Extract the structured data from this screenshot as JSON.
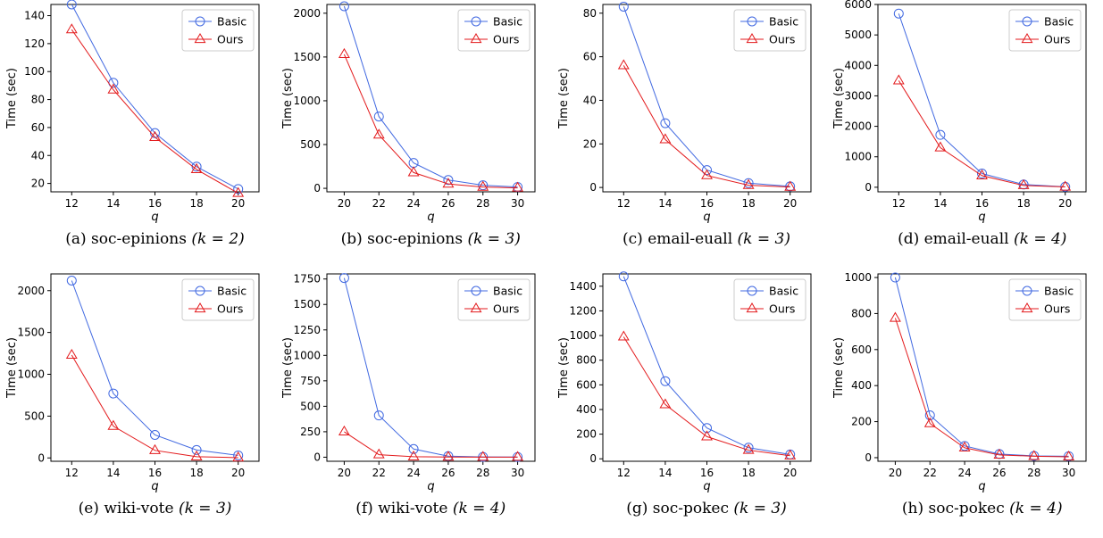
{
  "theme": {
    "basic_color": "#4169e1",
    "ours_color": "#e31a1c"
  },
  "chart_data": [
    {
      "type": "line",
      "ylabel": "Time (sec)",
      "xlabel": "q",
      "caption": {
        "prefix": "(a) soc-epinions ",
        "math": "(k = 2)"
      },
      "x": [
        12,
        14,
        16,
        18,
        20
      ],
      "xlim": [
        11,
        21
      ],
      "xticks": [
        12,
        14,
        16,
        18,
        20
      ],
      "ylim": [
        14,
        148
      ],
      "yticks": [
        20,
        40,
        60,
        80,
        100,
        120,
        140
      ],
      "ytick_labels": [
        "20",
        "40",
        "60",
        "80",
        "100",
        "120",
        "140"
      ],
      "legend": "top-right",
      "series": [
        {
          "name": "Basic",
          "marker": "circle",
          "values": [
            148,
            92,
            56,
            32,
            16
          ]
        },
        {
          "name": "Ours",
          "marker": "triangle",
          "values": [
            130,
            87,
            53,
            30,
            13
          ]
        }
      ]
    },
    {
      "type": "line",
      "ylabel": "Time (sec)",
      "xlabel": "q",
      "caption": {
        "prefix": "(b) soc-epinions ",
        "math": "(k = 3)"
      },
      "x": [
        20,
        22,
        24,
        26,
        28,
        30
      ],
      "xlim": [
        19,
        31
      ],
      "xticks": [
        20,
        22,
        24,
        26,
        28,
        30
      ],
      "ylim": [
        -40,
        2100
      ],
      "yticks": [
        0,
        500,
        1000,
        1500,
        2000
      ],
      "ytick_labels": [
        "0",
        "500",
        "1000",
        "1500",
        "2000"
      ],
      "legend": "top-right",
      "series": [
        {
          "name": "Basic",
          "marker": "circle",
          "values": [
            2080,
            820,
            290,
            95,
            35,
            15
          ]
        },
        {
          "name": "Ours",
          "marker": "triangle",
          "values": [
            1530,
            610,
            180,
            50,
            15,
            5
          ]
        }
      ]
    },
    {
      "type": "line",
      "ylabel": "Time (sec)",
      "xlabel": "q",
      "caption": {
        "prefix": "(c) email-euall ",
        "math": "(k = 3)"
      },
      "x": [
        12,
        14,
        16,
        18,
        20
      ],
      "xlim": [
        11,
        21
      ],
      "xticks": [
        12,
        14,
        16,
        18,
        20
      ],
      "ylim": [
        -2,
        84
      ],
      "yticks": [
        0,
        20,
        40,
        60,
        80
      ],
      "ytick_labels": [
        "0",
        "20",
        "40",
        "60",
        "80"
      ],
      "legend": "top-right",
      "series": [
        {
          "name": "Basic",
          "marker": "circle",
          "values": [
            83,
            29.5,
            8,
            2,
            0.5
          ]
        },
        {
          "name": "Ours",
          "marker": "triangle",
          "values": [
            56,
            22,
            5.5,
            1,
            0.2
          ]
        }
      ]
    },
    {
      "type": "line",
      "ylabel": "Time (sec)",
      "xlabel": "q",
      "caption": {
        "prefix": "(d) email-euall ",
        "math": "(k = 4)"
      },
      "x": [
        12,
        14,
        16,
        18,
        20
      ],
      "xlim": [
        11,
        21
      ],
      "xticks": [
        12,
        14,
        16,
        18,
        20
      ],
      "ylim": [
        -150,
        6000
      ],
      "yticks": [
        0,
        1000,
        2000,
        3000,
        4000,
        5000,
        6000
      ],
      "ytick_labels": [
        "0",
        "1000",
        "2000",
        "3000",
        "4000",
        "5000",
        "6000"
      ],
      "legend": "top-right",
      "series": [
        {
          "name": "Basic",
          "marker": "circle",
          "values": [
            5700,
            1720,
            450,
            90,
            15
          ]
        },
        {
          "name": "Ours",
          "marker": "triangle",
          "values": [
            3500,
            1300,
            380,
            60,
            10
          ]
        }
      ]
    },
    {
      "type": "line",
      "ylabel": "Time (sec)",
      "xlabel": "q",
      "caption": {
        "prefix": "(e) wiki-vote ",
        "math": "(k = 3)"
      },
      "x": [
        12,
        14,
        16,
        18,
        20
      ],
      "xlim": [
        11,
        21
      ],
      "xticks": [
        12,
        14,
        16,
        18,
        20
      ],
      "ylim": [
        -40,
        2200
      ],
      "yticks": [
        0,
        500,
        1000,
        1500,
        2000
      ],
      "ytick_labels": [
        "0",
        "500",
        "1000",
        "1500",
        "2000"
      ],
      "legend": "top-right",
      "series": [
        {
          "name": "Basic",
          "marker": "circle",
          "values": [
            2120,
            770,
            275,
            95,
            30
          ]
        },
        {
          "name": "Ours",
          "marker": "triangle",
          "values": [
            1230,
            380,
            90,
            15,
            3
          ]
        }
      ]
    },
    {
      "type": "line",
      "ylabel": "Time (sec)",
      "xlabel": "q",
      "caption": {
        "prefix": "(f) wiki-vote ",
        "math": "(k = 4)"
      },
      "x": [
        20,
        22,
        24,
        26,
        28,
        30
      ],
      "xlim": [
        19,
        31
      ],
      "xticks": [
        20,
        22,
        24,
        26,
        28,
        30
      ],
      "ylim": [
        -40,
        1800
      ],
      "yticks": [
        0,
        250,
        500,
        750,
        1000,
        1250,
        1500,
        1750
      ],
      "ytick_labels": [
        "0",
        "250",
        "500",
        "750",
        "1000",
        "1250",
        "1500",
        "1750"
      ],
      "legend": "top-right",
      "series": [
        {
          "name": "Basic",
          "marker": "circle",
          "values": [
            1760,
            410,
            80,
            10,
            3,
            2
          ]
        },
        {
          "name": "Ours",
          "marker": "triangle",
          "values": [
            250,
            25,
            5,
            2,
            1,
            1
          ]
        }
      ]
    },
    {
      "type": "line",
      "ylabel": "Time (sec)",
      "xlabel": "q",
      "caption": {
        "prefix": "(g) soc-pokec ",
        "math": "(k = 3)"
      },
      "x": [
        12,
        14,
        16,
        18,
        20
      ],
      "xlim": [
        11,
        21
      ],
      "xticks": [
        12,
        14,
        16,
        18,
        20
      ],
      "ylim": [
        -20,
        1500
      ],
      "yticks": [
        0,
        200,
        400,
        600,
        800,
        1000,
        1200,
        1400
      ],
      "ytick_labels": [
        "0",
        "200",
        "400",
        "600",
        "800",
        "1000",
        "1200",
        "1400"
      ],
      "legend": "top-right",
      "series": [
        {
          "name": "Basic",
          "marker": "circle",
          "values": [
            1480,
            630,
            250,
            90,
            35
          ]
        },
        {
          "name": "Ours",
          "marker": "triangle",
          "values": [
            990,
            440,
            180,
            70,
            25
          ]
        }
      ]
    },
    {
      "type": "line",
      "ylabel": "Time (sec)",
      "xlabel": "q",
      "caption": {
        "prefix": "(h) soc-pokec ",
        "math": "(k = 4)"
      },
      "x": [
        20,
        22,
        24,
        26,
        28,
        30
      ],
      "xlim": [
        19,
        31
      ],
      "xticks": [
        20,
        22,
        24,
        26,
        28,
        30
      ],
      "ylim": [
        -20,
        1020
      ],
      "yticks": [
        0,
        200,
        400,
        600,
        800,
        1000
      ],
      "ytick_labels": [
        "0",
        "200",
        "400",
        "600",
        "800",
        "1000"
      ],
      "legend": "top-right",
      "series": [
        {
          "name": "Basic",
          "marker": "circle",
          "values": [
            1000,
            235,
            65,
            20,
            10,
            8
          ]
        },
        {
          "name": "Ours",
          "marker": "triangle",
          "values": [
            775,
            190,
            55,
            15,
            8,
            5
          ]
        }
      ]
    }
  ]
}
